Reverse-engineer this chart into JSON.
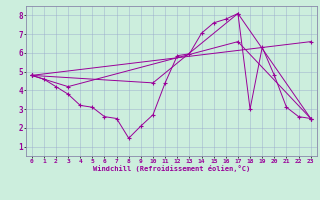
{
  "xlabel": "Windchill (Refroidissement éolien,°C)",
  "bg_color": "#cceedd",
  "line_color": "#990099",
  "grid_color": "#99aacc",
  "xlim": [
    -0.5,
    23.5
  ],
  "ylim": [
    0.5,
    8.5
  ],
  "xticks": [
    0,
    1,
    2,
    3,
    4,
    5,
    6,
    7,
    8,
    9,
    10,
    11,
    12,
    13,
    14,
    15,
    16,
    17,
    18,
    19,
    20,
    21,
    22,
    23
  ],
  "yticks": [
    1,
    2,
    3,
    4,
    5,
    6,
    7,
    8
  ],
  "series1": {
    "x": [
      0,
      1,
      2,
      3,
      4,
      5,
      6,
      7,
      8,
      9,
      10,
      11,
      12,
      13,
      14,
      15,
      16,
      17,
      18,
      19,
      20,
      21,
      22,
      23
    ],
    "y": [
      4.8,
      4.6,
      4.2,
      3.8,
      3.2,
      3.1,
      2.6,
      2.5,
      1.45,
      2.1,
      2.7,
      4.4,
      5.85,
      5.95,
      7.05,
      7.6,
      7.8,
      8.1,
      3.0,
      6.3,
      4.8,
      3.1,
      2.6,
      2.5
    ]
  },
  "series2": {
    "x": [
      0,
      3,
      17,
      23
    ],
    "y": [
      4.8,
      4.2,
      6.6,
      2.5
    ]
  },
  "series3": {
    "x": [
      0,
      23
    ],
    "y": [
      4.8,
      6.6
    ]
  },
  "series4": {
    "x": [
      0,
      10,
      17,
      23
    ],
    "y": [
      4.8,
      4.4,
      8.1,
      2.5
    ]
  }
}
